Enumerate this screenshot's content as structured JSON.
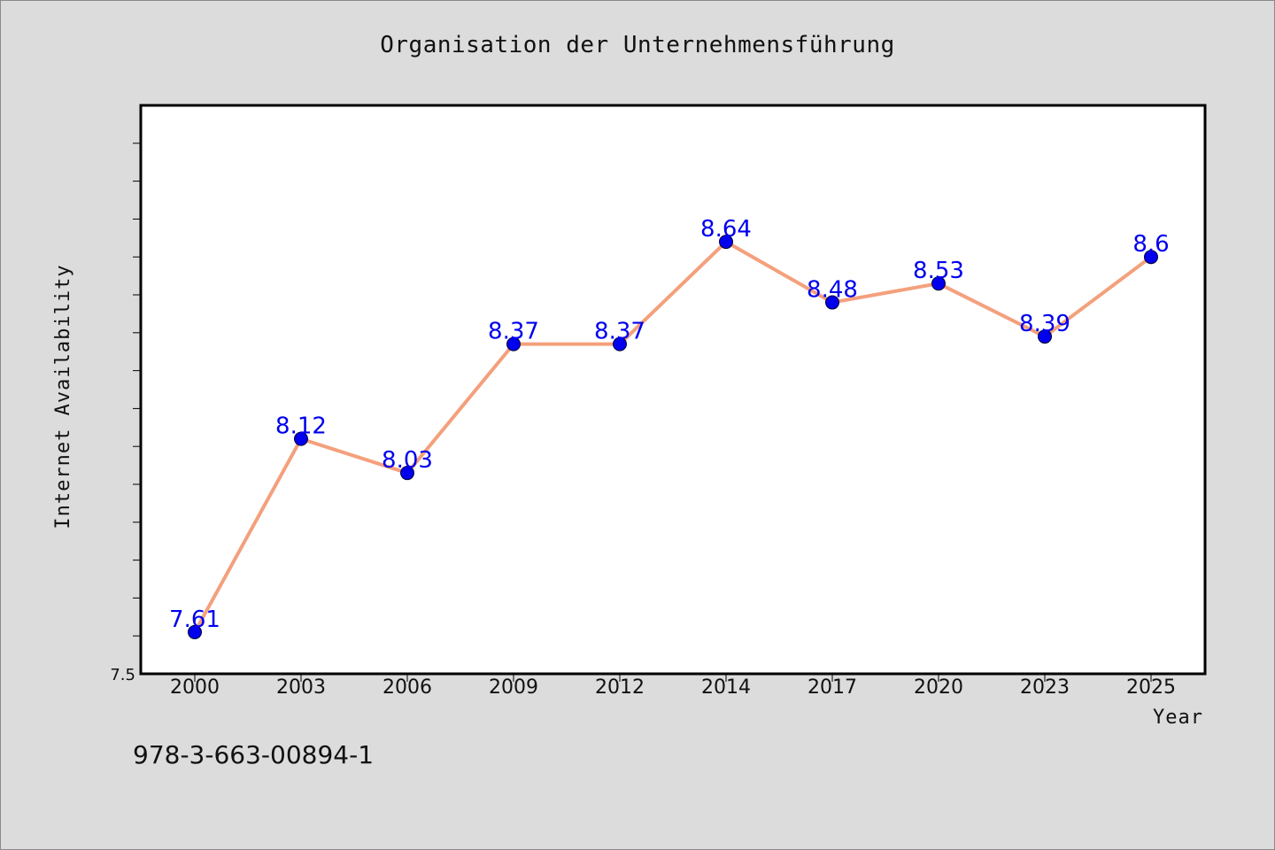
{
  "chart_data": {
    "type": "line",
    "title": "Organisation der Unternehmensführung",
    "xlabel": "Year",
    "ylabel": "Internet Availability",
    "x": [
      "2000",
      "2003",
      "2006",
      "2009",
      "2012",
      "2014",
      "2017",
      "2020",
      "2023",
      "2025"
    ],
    "series": [
      {
        "values": [
          7.61,
          8.12,
          8.03,
          8.37,
          8.37,
          8.64,
          8.48,
          8.53,
          8.39,
          8.6
        ],
        "data_labels": [
          "7.61",
          "8.12",
          "8.03",
          "8.37",
          "8.37",
          "8.64",
          "8.48",
          "8.53",
          "8.39",
          "8.6"
        ]
      }
    ],
    "ylim": [
      7.5,
      9.0
    ],
    "y_tick_labels": [
      "7.5"
    ],
    "grid": false,
    "colors": {
      "line": "#f4a07c",
      "marker": "#0000ee",
      "labels": "#0000ee",
      "background": "#dcdcdc",
      "plot_background": "#ffffff"
    }
  },
  "annotations": {
    "isbn": "978-3-663-00894-1"
  }
}
